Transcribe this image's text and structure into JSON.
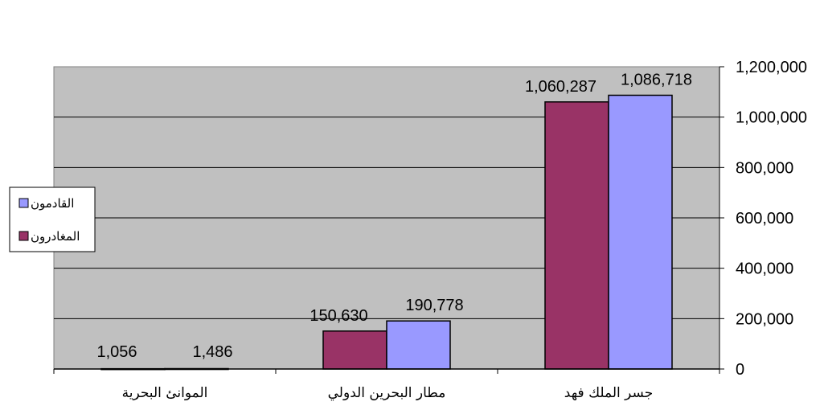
{
  "chart_data": {
    "type": "bar",
    "categories": [
      "جسر الملك فهد",
      "مطار البحرين الدولي",
      "الموانئ البحرية"
    ],
    "series": [
      {
        "name": "المغادرون",
        "color": "#993366",
        "values": [
          1060287,
          150630,
          1056
        ]
      },
      {
        "name": "القادمون",
        "color": "#9999FF",
        "values": [
          1086718,
          190778,
          1486
        ]
      }
    ],
    "yticks": [
      "0",
      "200,000",
      "400,000",
      "600,000",
      "800,000",
      "1,000,000",
      "1,200,000"
    ],
    "ylim": [
      0,
      1200000
    ],
    "y_axis_side": "right",
    "category_order": "right-to-left",
    "grid": true,
    "legend_position": "left",
    "plot_background": "#C0C0C0",
    "data_labels": [
      [
        "1,060,287",
        "150,630",
        "1,056"
      ],
      [
        "1,086,718",
        "190,778",
        "1,486"
      ]
    ]
  }
}
